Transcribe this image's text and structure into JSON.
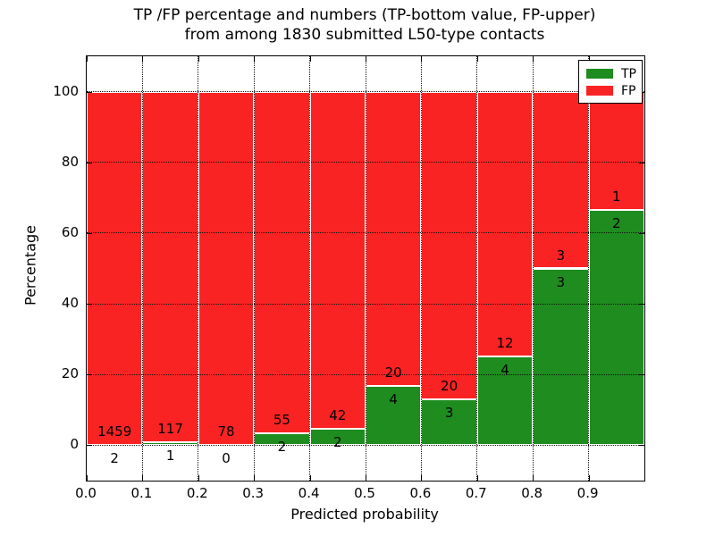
{
  "chart_data": {
    "type": "bar",
    "stacked": true,
    "normalized_to_percent": true,
    "title_line1": "TP /FP percentage and numbers (TP-bottom value, FP-upper)",
    "title_line2": "from among 1830 submitted L50-type contacts",
    "xlabel": "Predicted probability",
    "ylabel": "Percentage",
    "xlim": [
      0.0,
      1.0
    ],
    "ylim": [
      -10,
      110
    ],
    "grid": "dotted",
    "legend_position": "upper right",
    "xtick_labels": [
      "0.0",
      "0.1",
      "0.2",
      "0.3",
      "0.4",
      "0.5",
      "0.6",
      "0.7",
      "0.8",
      "0.9"
    ],
    "ytick_values": [
      0,
      20,
      40,
      60,
      80,
      100
    ],
    "series": [
      {
        "name": "TP",
        "color": "#1e8c1e"
      },
      {
        "name": "FP",
        "color": "#fa2323"
      }
    ],
    "total_contacts": 1830,
    "bins": [
      {
        "range": [
          0.0,
          0.1
        ],
        "tp": 2,
        "fp": 1459
      },
      {
        "range": [
          0.1,
          0.2
        ],
        "tp": 1,
        "fp": 117
      },
      {
        "range": [
          0.2,
          0.3
        ],
        "tp": 0,
        "fp": 78
      },
      {
        "range": [
          0.3,
          0.4
        ],
        "tp": 2,
        "fp": 55
      },
      {
        "range": [
          0.4,
          0.5
        ],
        "tp": 2,
        "fp": 42
      },
      {
        "range": [
          0.5,
          0.6
        ],
        "tp": 4,
        "fp": 20
      },
      {
        "range": [
          0.6,
          0.7
        ],
        "tp": 3,
        "fp": 20
      },
      {
        "range": [
          0.7,
          0.8
        ],
        "tp": 4,
        "fp": 12
      },
      {
        "range": [
          0.8,
          0.9
        ],
        "tp": 3,
        "fp": 3
      },
      {
        "range": [
          0.9,
          1.0
        ],
        "tp": 2,
        "fp": 1
      }
    ],
    "colors": {
      "background": "#ffffff",
      "frame": "#000000",
      "text": "#000000",
      "grid": "#111111",
      "bar_edge": "#ffffff"
    }
  }
}
